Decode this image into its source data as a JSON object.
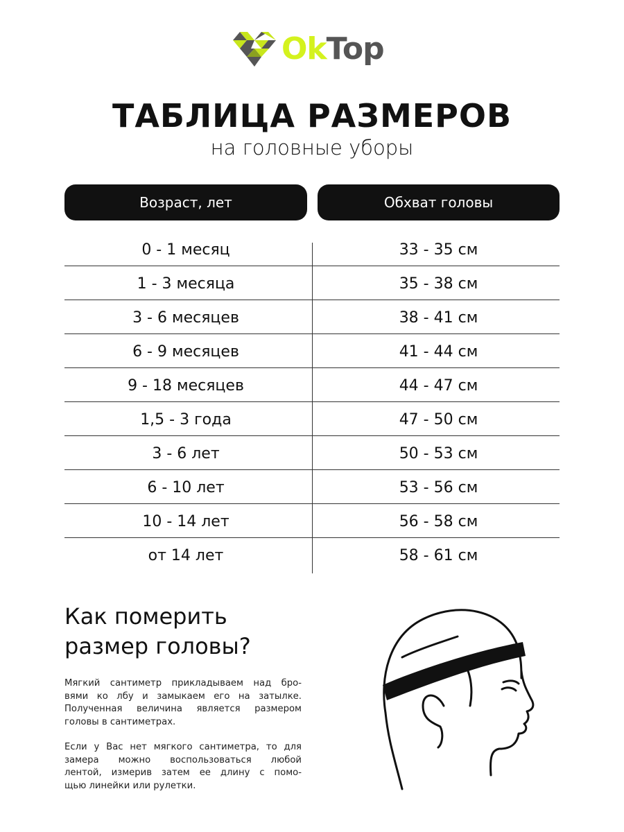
{
  "brand": {
    "logo_ok": "Ok",
    "logo_top": "Top",
    "accent": "#d4f21e",
    "dark": "#555555"
  },
  "title": "ТАБЛИЦА РАЗМЕРОВ",
  "subtitle": "на головные уборы",
  "table": {
    "headers": [
      "Возраст, лет",
      "Обхват головы"
    ],
    "rows": [
      [
        "0 - 1 месяц",
        "33 - 35 см"
      ],
      [
        "1 - 3 месяца",
        "35 - 38 см"
      ],
      [
        "3 - 6 месяцев",
        "38 - 41 см"
      ],
      [
        "6 - 9 месяцев",
        "41 - 44 см"
      ],
      [
        "9 - 18 месяцев",
        "44 - 47 см"
      ],
      [
        "1,5 - 3 года",
        "47 - 50 см"
      ],
      [
        "3 - 6 лет",
        "50 - 53 см"
      ],
      [
        "6 - 10 лет",
        "53 - 56 см"
      ],
      [
        "10 - 14 лет",
        "56 - 58 см"
      ],
      [
        "от 14 лет",
        "58 - 61 см"
      ]
    ]
  },
  "howto": {
    "heading": [
      "Как померить",
      "размер головы?"
    ],
    "paragraph1": [
      "Мягкий сантиметр прикладываем над бро-",
      "вями ко лбу и замыкаем его на затылке.",
      "Полученная величина является размером",
      "головы в сантиметрах."
    ],
    "paragraph2": [
      "Если у Вас нет мягкого сантиметра, то для",
      "замера можно воспользоваться любой",
      "лентой, измерив затем ее длину с помо-",
      "щью линейки или рулетки."
    ]
  }
}
